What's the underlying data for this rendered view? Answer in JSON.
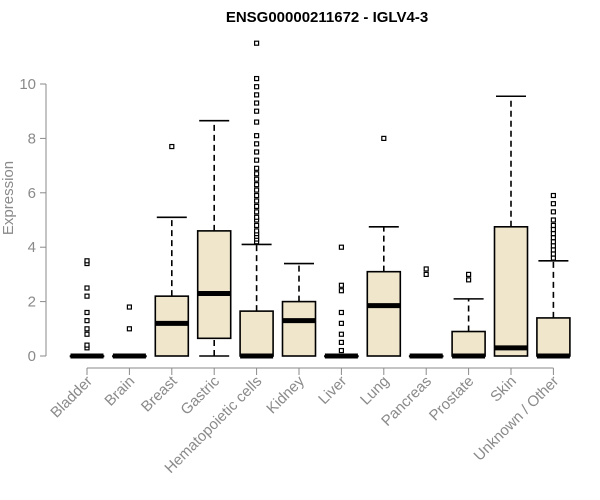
{
  "chart_data": {
    "type": "box",
    "title": "ENSG00000211672 - IGLV4-3",
    "ylabel": "Expression",
    "ylim": [
      0,
      12
    ],
    "yticks": [
      0,
      2,
      4,
      6,
      8,
      10
    ],
    "grid": false,
    "colors": {
      "box_fill": "#efe6cc",
      "box_stroke": "#000000",
      "axis": "#8a8a8a"
    },
    "categories": [
      "Bladder",
      "Brain",
      "Breast",
      "Gastric",
      "Hematopoietic cells",
      "Kidney",
      "Liver",
      "Lung",
      "Pancreas",
      "Prostate",
      "Skin",
      "Unknown / Other"
    ],
    "boxes": [
      {
        "category": "Bladder",
        "min": 0,
        "q1": 0,
        "median": 0,
        "q3": 0,
        "max": 0,
        "outliers": [
          0.3,
          0.4,
          0.8,
          1.0,
          1.3,
          1.6,
          2.2,
          2.5,
          3.4,
          3.5
        ]
      },
      {
        "category": "Brain",
        "min": 0,
        "q1": 0,
        "median": 0,
        "q3": 0,
        "max": 0,
        "outliers": [
          1.0,
          1.8
        ]
      },
      {
        "category": "Breast",
        "min": 0,
        "q1": 0,
        "median": 1.2,
        "q3": 2.2,
        "max": 5.1,
        "outliers": [
          7.7
        ]
      },
      {
        "category": "Gastric",
        "min": 0,
        "q1": 0.65,
        "median": 2.3,
        "q3": 4.6,
        "max": 8.65,
        "outliers": []
      },
      {
        "category": "Hematopoietic cells",
        "min": 0,
        "q1": 0,
        "median": 0,
        "q3": 1.65,
        "max": 4.1,
        "outliers": [
          4.2,
          4.3,
          4.4,
          4.5,
          4.6,
          4.8,
          5.0,
          5.1,
          5.3,
          5.5,
          5.7,
          5.9,
          6.1,
          6.3,
          6.5,
          6.7,
          6.9,
          7.2,
          7.5,
          7.8,
          8.1,
          8.6,
          9.0,
          9.3,
          9.6,
          9.9,
          10.2,
          11.5
        ]
      },
      {
        "category": "Kidney",
        "min": 0,
        "q1": 0,
        "median": 1.3,
        "q3": 2.0,
        "max": 3.4,
        "outliers": []
      },
      {
        "category": "Liver",
        "min": 0,
        "q1": 0,
        "median": 0,
        "q3": 0,
        "max": 0,
        "outliers": [
          0.2,
          0.5,
          0.8,
          1.2,
          1.6,
          2.4,
          2.6,
          4.0
        ]
      },
      {
        "category": "Lung",
        "min": 0,
        "q1": 0,
        "median": 1.85,
        "q3": 3.1,
        "max": 4.75,
        "outliers": [
          8.0
        ]
      },
      {
        "category": "Pancreas",
        "min": 0,
        "q1": 0,
        "median": 0,
        "q3": 0,
        "max": 0,
        "outliers": [
          3.0,
          3.2
        ]
      },
      {
        "category": "Prostate",
        "min": 0,
        "q1": 0,
        "median": 0,
        "q3": 0.9,
        "max": 2.1,
        "outliers": [
          2.8,
          3.0
        ]
      },
      {
        "category": "Skin",
        "min": 0,
        "q1": 0,
        "median": 0.3,
        "q3": 4.75,
        "max": 9.55,
        "outliers": []
      },
      {
        "category": "Unknown / Other",
        "min": 0,
        "q1": 0,
        "median": 0,
        "q3": 1.4,
        "max": 3.5,
        "outliers": [
          3.6,
          3.75,
          3.9,
          4.05,
          4.2,
          4.35,
          4.5,
          4.65,
          4.8,
          5.0,
          5.3,
          5.6,
          5.9
        ]
      }
    ]
  }
}
